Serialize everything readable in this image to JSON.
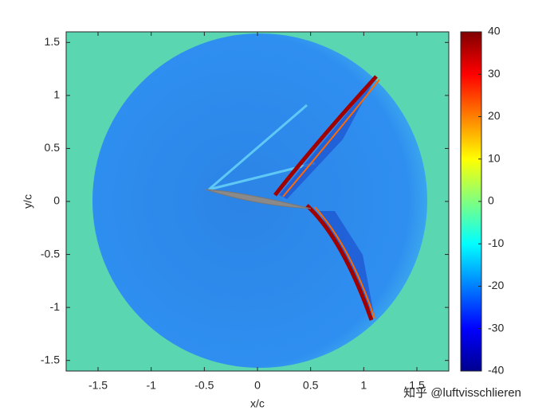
{
  "chart_data": {
    "type": "heatmap",
    "xlabel": "x/c",
    "ylabel": "y/c",
    "xlim": [
      -1.8,
      1.8
    ],
    "xticks": [
      -1.5,
      -1,
      -0.5,
      0,
      0.5,
      1,
      1.5
    ],
    "ylim": [
      -1.6,
      1.6
    ],
    "yticks": [
      -1.5,
      -1,
      -0.5,
      0,
      0.5,
      1,
      1.5
    ],
    "colormap": "jet",
    "clim": [
      -40,
      40
    ],
    "cticks": [
      -40,
      -30,
      -20,
      -10,
      0,
      10,
      20,
      30,
      40
    ],
    "watermark": "知乎 @luftvisschlieren"
  }
}
